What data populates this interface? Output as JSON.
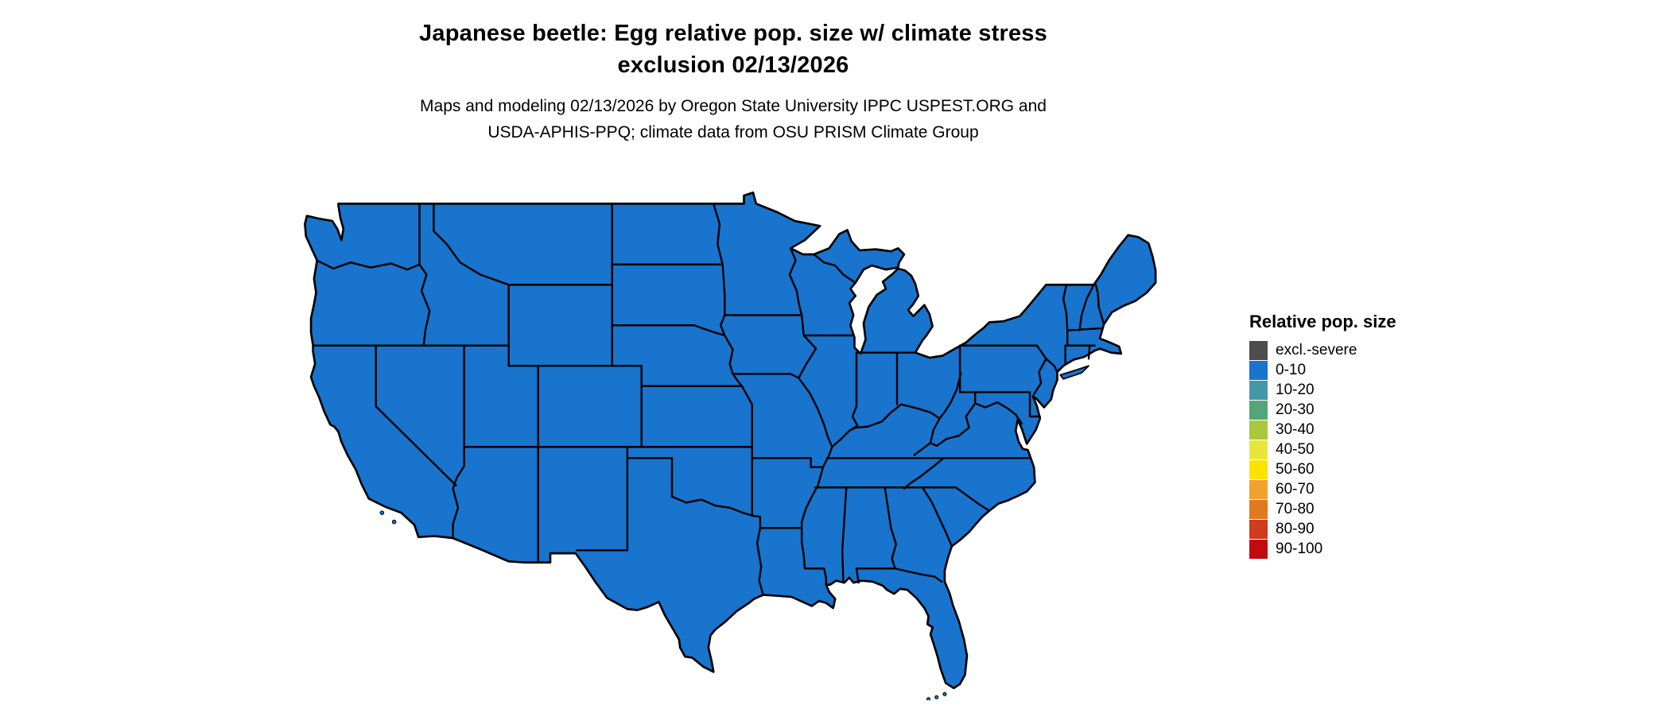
{
  "title": {
    "line1": "Japanese beetle: Egg relative pop. size w/ climate stress",
    "line2": "exclusion 02/13/2026"
  },
  "subtitle": {
    "line1": "Maps and modeling 02/13/2026 by Oregon State University IPPC USPEST.ORG and",
    "line2": "USDA-APHIS-PPQ; climate data from OSU PRISM Climate Group"
  },
  "map": {
    "region": "Contiguous United States",
    "fill_category": "0-10",
    "fill_color": "#1874CD",
    "border_color": "#000000"
  },
  "legend": {
    "title": "Relative pop. size",
    "items": [
      {
        "label": "excl.-severe",
        "color": "#4D4D4D"
      },
      {
        "label": "0-10",
        "color": "#1874CD"
      },
      {
        "label": "10-20",
        "color": "#4398A8"
      },
      {
        "label": "20-30",
        "color": "#55A47C"
      },
      {
        "label": "30-40",
        "color": "#A9C83C"
      },
      {
        "label": "40-50",
        "color": "#E8E53C"
      },
      {
        "label": "50-60",
        "color": "#FCE205"
      },
      {
        "label": "60-70",
        "color": "#F2A12D"
      },
      {
        "label": "70-80",
        "color": "#DE7A1F"
      },
      {
        "label": "80-90",
        "color": "#CE3B1E"
      },
      {
        "label": "90-100",
        "color": "#C30A0E"
      }
    ]
  }
}
